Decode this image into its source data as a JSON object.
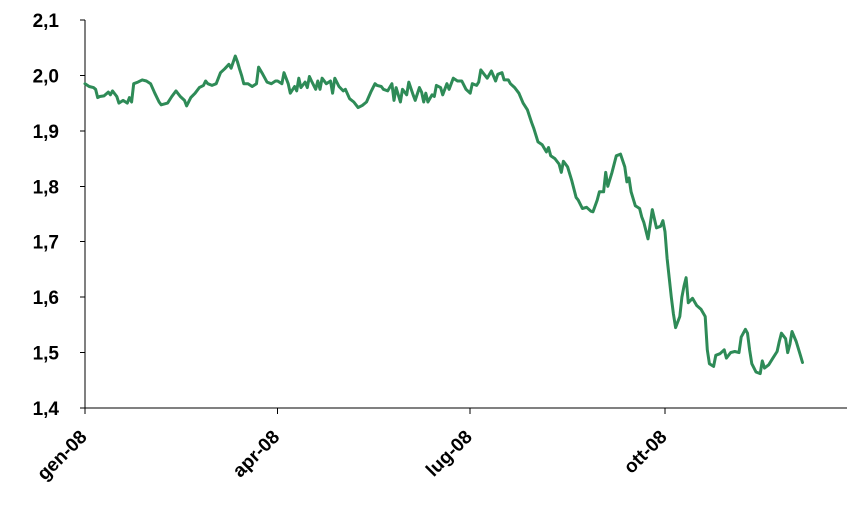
{
  "chart_data": {
    "type": "line",
    "title": "",
    "xlabel": "",
    "ylabel": "",
    "ylim": [
      1.4,
      2.1
    ],
    "y_ticks": [
      "1,4",
      "1,5",
      "1,6",
      "1,7",
      "1,8",
      "1,9",
      "2,0",
      "2,1"
    ],
    "y_tick_values": [
      1.4,
      1.5,
      1.6,
      1.7,
      1.8,
      1.9,
      2.0,
      2.1
    ],
    "x_ticks": [
      "gen-08",
      "apr-08",
      "lug-08",
      "ott-08"
    ],
    "x_range_days": [
      0,
      360
    ],
    "x_tick_days": [
      0,
      91,
      182,
      274
    ],
    "line_color": "#2e8b57",
    "grid": false,
    "series": [
      {
        "values": [
          [
            0,
            1.985
          ],
          [
            2,
            1.98
          ],
          [
            4,
            1.978
          ],
          [
            5,
            1.975
          ],
          [
            6,
            1.96
          ],
          [
            7,
            1.962
          ],
          [
            9,
            1.963
          ],
          [
            11,
            1.97
          ],
          [
            12,
            1.965
          ],
          [
            13,
            1.972
          ],
          [
            15,
            1.962
          ],
          [
            16,
            1.95
          ],
          [
            18,
            1.955
          ],
          [
            20,
            1.95
          ],
          [
            21,
            1.96
          ],
          [
            22,
            1.952
          ],
          [
            23,
            1.985
          ],
          [
            25,
            1.988
          ],
          [
            27,
            1.992
          ],
          [
            29,
            1.99
          ],
          [
            31,
            1.985
          ],
          [
            33,
            1.968
          ],
          [
            35,
            1.952
          ],
          [
            36,
            1.947
          ],
          [
            39,
            1.95
          ],
          [
            41,
            1.962
          ],
          [
            43,
            1.972
          ],
          [
            45,
            1.962
          ],
          [
            47,
            1.955
          ],
          [
            48,
            1.945
          ],
          [
            50,
            1.96
          ],
          [
            52,
            1.968
          ],
          [
            54,
            1.978
          ],
          [
            56,
            1.982
          ],
          [
            57,
            1.99
          ],
          [
            58,
            1.985
          ],
          [
            60,
            1.982
          ],
          [
            62,
            1.985
          ],
          [
            64,
            2.005
          ],
          [
            66,
            2.012
          ],
          [
            68,
            2.02
          ],
          [
            69,
            2.013
          ],
          [
            71,
            2.035
          ],
          [
            72,
            2.025
          ],
          [
            73,
            2.012
          ],
          [
            74,
            2.0
          ],
          [
            75,
            1.985
          ],
          [
            77,
            1.985
          ],
          [
            79,
            1.98
          ],
          [
            81,
            1.985
          ],
          [
            82,
            2.015
          ],
          [
            84,
            2.002
          ],
          [
            86,
            1.988
          ],
          [
            88,
            1.985
          ],
          [
            90,
            1.99
          ],
          [
            91,
            1.99
          ],
          [
            93,
            1.985
          ],
          [
            94,
            2.005
          ],
          [
            96,
            1.985
          ],
          [
            97,
            1.968
          ],
          [
            99,
            1.98
          ],
          [
            100,
            1.972
          ],
          [
            101,
            1.995
          ],
          [
            102,
            1.978
          ],
          [
            104,
            1.988
          ],
          [
            105,
            1.978
          ],
          [
            106,
            1.998
          ],
          [
            107,
            1.99
          ],
          [
            109,
            1.975
          ],
          [
            110,
            1.99
          ],
          [
            111,
            1.975
          ],
          [
            112,
            1.995
          ],
          [
            114,
            1.985
          ],
          [
            116,
            1.99
          ],
          [
            117,
            1.968
          ],
          [
            118,
            1.995
          ],
          [
            120,
            1.98
          ],
          [
            122,
            1.972
          ],
          [
            123,
            1.975
          ],
          [
            125,
            1.958
          ],
          [
            127,
            1.952
          ],
          [
            129,
            1.942
          ],
          [
            131,
            1.946
          ],
          [
            133,
            1.952
          ],
          [
            135,
            1.97
          ],
          [
            137,
            1.985
          ],
          [
            138,
            1.982
          ],
          [
            140,
            1.98
          ],
          [
            141,
            1.975
          ],
          [
            143,
            1.972
          ],
          [
            145,
            1.985
          ],
          [
            146,
            1.955
          ],
          [
            147,
            1.978
          ],
          [
            149,
            1.952
          ],
          [
            150,
            1.975
          ],
          [
            152,
            1.965
          ],
          [
            153,
            1.988
          ],
          [
            155,
            1.965
          ],
          [
            156,
            1.955
          ],
          [
            158,
            1.978
          ],
          [
            159,
            1.97
          ],
          [
            160,
            1.952
          ],
          [
            161,
            1.968
          ],
          [
            162,
            1.952
          ],
          [
            164,
            1.965
          ],
          [
            165,
            1.962
          ],
          [
            166,
            1.982
          ],
          [
            168,
            1.978
          ],
          [
            169,
            1.965
          ],
          [
            171,
            1.985
          ],
          [
            172,
            1.975
          ],
          [
            174,
            1.995
          ],
          [
            176,
            1.99
          ],
          [
            178,
            1.99
          ],
          [
            180,
            1.975
          ],
          [
            182,
            1.968
          ],
          [
            183,
            1.985
          ],
          [
            185,
            1.982
          ],
          [
            186,
            1.988
          ],
          [
            187,
            2.01
          ],
          [
            188,
            2.005
          ],
          [
            190,
            1.995
          ],
          [
            192,
            2.008
          ],
          [
            194,
            1.99
          ],
          [
            195,
            2.002
          ],
          [
            197,
            2.005
          ],
          [
            198,
            1.992
          ],
          [
            200,
            1.992
          ],
          [
            201,
            1.985
          ],
          [
            203,
            1.978
          ],
          [
            205,
            1.968
          ],
          [
            207,
            1.95
          ],
          [
            209,
            1.938
          ],
          [
            211,
            1.915
          ],
          [
            212,
            1.905
          ],
          [
            214,
            1.88
          ],
          [
            216,
            1.875
          ],
          [
            218,
            1.862
          ],
          [
            219,
            1.87
          ],
          [
            220,
            1.855
          ],
          [
            222,
            1.85
          ],
          [
            224,
            1.84
          ],
          [
            225,
            1.825
          ],
          [
            226,
            1.845
          ],
          [
            228,
            1.835
          ],
          [
            230,
            1.81
          ],
          [
            232,
            1.78
          ],
          [
            233,
            1.775
          ],
          [
            235,
            1.76
          ],
          [
            237,
            1.762
          ],
          [
            239,
            1.755
          ],
          [
            240,
            1.754
          ],
          [
            242,
            1.775
          ],
          [
            243,
            1.79
          ],
          [
            245,
            1.79
          ],
          [
            246,
            1.825
          ],
          [
            247,
            1.8
          ],
          [
            249,
            1.825
          ],
          [
            251,
            1.855
          ],
          [
            253,
            1.858
          ],
          [
            255,
            1.835
          ],
          [
            256,
            1.808
          ],
          [
            257,
            1.815
          ],
          [
            258,
            1.79
          ],
          [
            260,
            1.765
          ],
          [
            262,
            1.76
          ],
          [
            263,
            1.745
          ],
          [
            264,
            1.735
          ],
          [
            266,
            1.705
          ],
          [
            267,
            1.73
          ],
          [
            268,
            1.758
          ],
          [
            270,
            1.725
          ],
          [
            272,
            1.728
          ],
          [
            273,
            1.738
          ],
          [
            274,
            1.718
          ],
          [
            275,
            1.67
          ],
          [
            276,
            1.635
          ],
          [
            277,
            1.6
          ],
          [
            278,
            1.57
          ],
          [
            279,
            1.545
          ],
          [
            281,
            1.565
          ],
          [
            282,
            1.6
          ],
          [
            283,
            1.62
          ],
          [
            284,
            1.635
          ],
          [
            285,
            1.59
          ],
          [
            287,
            1.598
          ],
          [
            289,
            1.585
          ],
          [
            291,
            1.578
          ],
          [
            293,
            1.565
          ],
          [
            294,
            1.505
          ],
          [
            295,
            1.48
          ],
          [
            297,
            1.475
          ],
          [
            298,
            1.495
          ],
          [
            300,
            1.498
          ],
          [
            302,
            1.505
          ],
          [
            303,
            1.49
          ],
          [
            305,
            1.5
          ],
          [
            307,
            1.502
          ],
          [
            309,
            1.5
          ],
          [
            310,
            1.528
          ],
          [
            312,
            1.542
          ],
          [
            313,
            1.535
          ],
          [
            314,
            1.505
          ],
          [
            315,
            1.48
          ],
          [
            317,
            1.465
          ],
          [
            319,
            1.462
          ],
          [
            320,
            1.485
          ],
          [
            321,
            1.472
          ],
          [
            323,
            1.478
          ],
          [
            325,
            1.49
          ],
          [
            327,
            1.502
          ],
          [
            328,
            1.52
          ],
          [
            329,
            1.535
          ],
          [
            331,
            1.525
          ],
          [
            332,
            1.5
          ],
          [
            333,
            1.515
          ],
          [
            334,
            1.538
          ],
          [
            336,
            1.52
          ],
          [
            338,
            1.495
          ],
          [
            339,
            1.482
          ]
        ]
      }
    ]
  }
}
